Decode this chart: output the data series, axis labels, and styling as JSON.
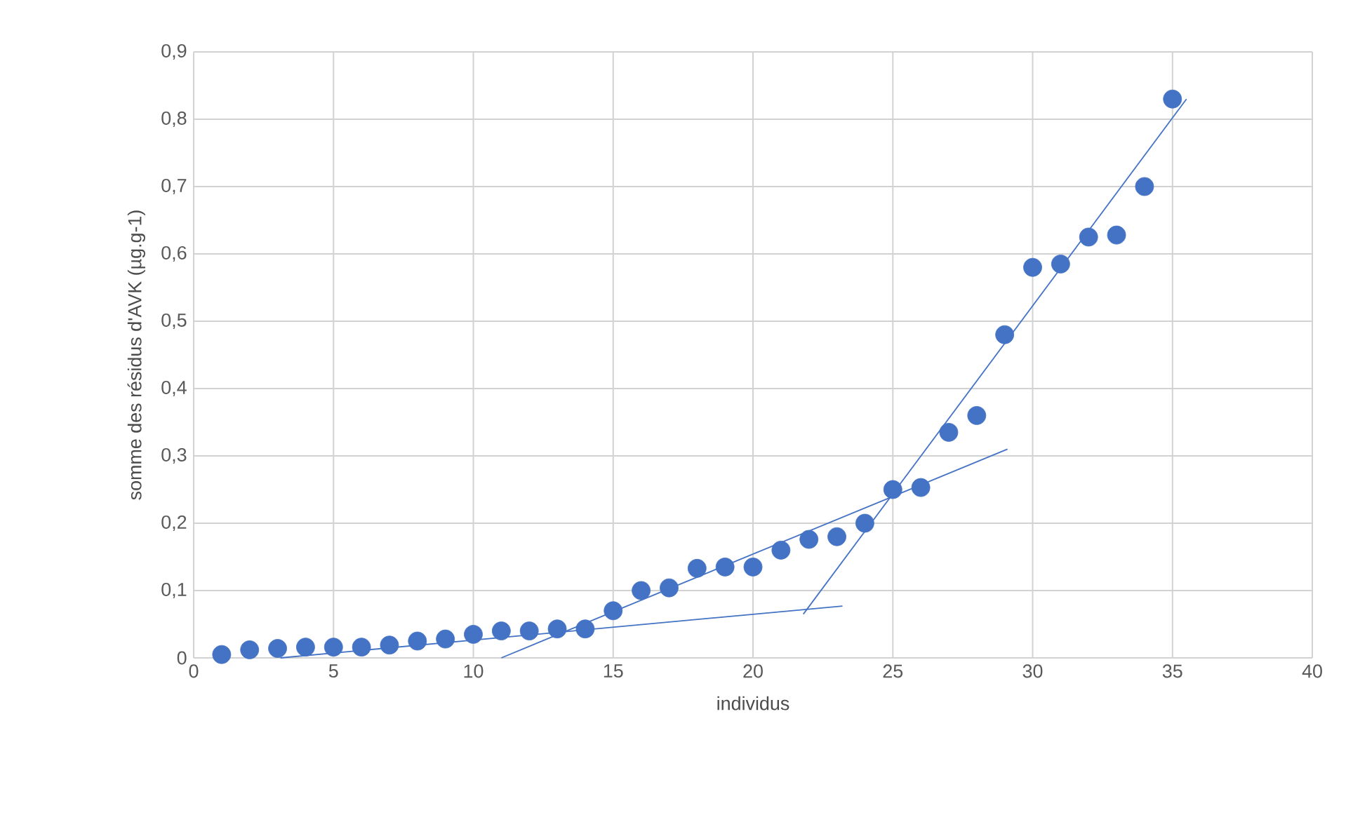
{
  "chart_data": {
    "type": "scatter",
    "xlabel": "individus",
    "ylabel": "somme des résidus d'AVK (µg.g-1)",
    "xlim": [
      0,
      40
    ],
    "xticks": [
      0,
      5,
      10,
      15,
      20,
      25,
      30,
      35,
      40
    ],
    "ylim": [
      0,
      0.9
    ],
    "yticks": [
      0,
      {
        "value": 0.1,
        "label": "0,1"
      },
      {
        "value": 0.2,
        "label": "0,2"
      },
      {
        "value": 0.3,
        "label": "0,3"
      },
      {
        "value": 0.4,
        "label": "0,4"
      },
      {
        "value": 0.5,
        "label": "0,5"
      },
      {
        "value": 0.6,
        "label": "0,6"
      },
      {
        "value": 0.7,
        "label": "0,7"
      },
      {
        "value": 0.8,
        "label": "0,8"
      },
      {
        "value": 0.9,
        "label": "0,9"
      }
    ],
    "grid": true,
    "marker": "circle",
    "series": [
      {
        "color": "#4472c4",
        "x": [
          1,
          2,
          3,
          4,
          5,
          6,
          7,
          8,
          9,
          10,
          11,
          12,
          13,
          14,
          15,
          16,
          17,
          18,
          19,
          20,
          21,
          22,
          23,
          24,
          25,
          26,
          27,
          28,
          29,
          30,
          31,
          32,
          33,
          34,
          35
        ],
        "values": [
          0.005,
          0.012,
          0.014,
          0.016,
          0.016,
          0.016,
          0.019,
          0.025,
          0.028,
          0.035,
          0.04,
          0.04,
          0.043,
          0.043,
          0.07,
          0.1,
          0.104,
          0.133,
          0.135,
          0.135,
          0.16,
          0.176,
          0.18,
          0.2,
          0.25,
          0.253,
          0.335,
          0.36,
          0.48,
          0.58,
          0.585,
          0.625,
          0.628,
          0.7,
          0.83
        ]
      },
      {
        "type": "line",
        "color": "#4472c4",
        "marker": "none",
        "x": [
          3.1,
          23.2
        ],
        "values": [
          0,
          0.077
        ]
      },
      {
        "type": "line",
        "color": "#4472c4",
        "marker": "none",
        "x": [
          11.0,
          29.1
        ],
        "values": [
          0,
          0.31
        ]
      },
      {
        "type": "line",
        "color": "#4472c4",
        "marker": "none",
        "x": [
          21.8,
          35.5
        ],
        "values": [
          0.065,
          0.83
        ]
      }
    ]
  }
}
